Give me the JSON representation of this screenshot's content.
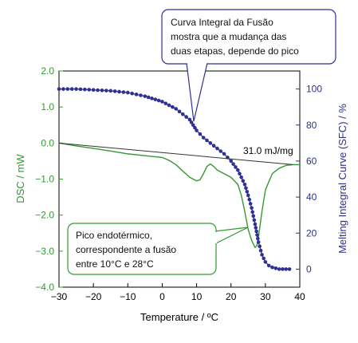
{
  "colors": {
    "dsc": "#339933",
    "sfc": "#2e3192",
    "baseline": "#333333",
    "callout_sfc_border": "#2e3192",
    "callout_dsc_border": "#339933"
  },
  "chart_data": {
    "type": "line",
    "xlabel": "Temperature / ºC",
    "ylabel_left": "DSC  /  mW",
    "ylabel_right": "Melting Integral Curve (SFC) / %",
    "xlim": [
      -30,
      40
    ],
    "ylim_left": [
      -4.0,
      2.0
    ],
    "ylim_right": [
      -10,
      110
    ],
    "x_ticks": [
      "−30",
      "−20",
      "−10",
      "0",
      "10",
      "20",
      "30",
      "40"
    ],
    "y_left_ticks": [
      "2.0",
      "1.0",
      "0.0",
      "−1.0",
      "−2.0",
      "−3.0",
      "−4.0"
    ],
    "y_right_ticks": [
      "100",
      "80",
      "60",
      "40",
      "20",
      "0"
    ],
    "grid": false,
    "series": [
      {
        "axis": "left",
        "x": [
          -30,
          -25,
          -20,
          -15,
          -10,
          -5,
          0,
          2,
          4,
          6,
          8,
          10,
          11,
          12,
          13,
          14,
          15,
          16,
          18,
          20,
          22,
          23,
          24,
          25,
          26,
          27,
          27.5,
          28,
          29,
          30,
          32,
          34,
          36,
          38,
          40
        ],
        "values": [
          0.0,
          -0.08,
          -0.15,
          -0.22,
          -0.3,
          -0.35,
          -0.4,
          -0.48,
          -0.6,
          -0.78,
          -0.95,
          -1.05,
          -1.02,
          -0.85,
          -0.65,
          -0.58,
          -0.65,
          -0.75,
          -0.85,
          -0.95,
          -1.15,
          -1.45,
          -1.9,
          -2.4,
          -2.7,
          -2.9,
          -2.85,
          -2.6,
          -1.9,
          -1.3,
          -0.85,
          -0.7,
          -0.62,
          -0.6,
          -0.6
        ]
      },
      {
        "axis": "right",
        "x": [
          -30,
          -25,
          -20,
          -15,
          -10,
          -5,
          0,
          2,
          4,
          6,
          8,
          9,
          10,
          12,
          14,
          16,
          18,
          20,
          22,
          24,
          25,
          26,
          27,
          28,
          29,
          30,
          31,
          32,
          34,
          36,
          37
        ],
        "values": [
          100,
          100,
          99.5,
          99,
          98,
          96,
          93,
          91,
          89,
          86,
          83,
          80,
          77,
          73,
          70,
          67,
          64,
          60,
          55,
          47,
          41,
          34,
          25,
          15,
          8,
          4,
          2,
          1,
          0,
          0,
          0
        ]
      },
      {
        "axis": "left",
        "role": "baseline",
        "x": [
          -30,
          38
        ],
        "values": [
          0.0,
          -0.6
        ]
      }
    ],
    "annotations": {
      "energy": "31.0 mJ/mg",
      "callout_top": [
        "Curva Integral da Fusão",
        "mostra que a mudança das",
        "duas etapas, depende do pico"
      ],
      "callout_bottom": [
        "Pico endotérmico,",
        "correspondente a fusão",
        "entre 10°C e 28°C"
      ]
    }
  }
}
